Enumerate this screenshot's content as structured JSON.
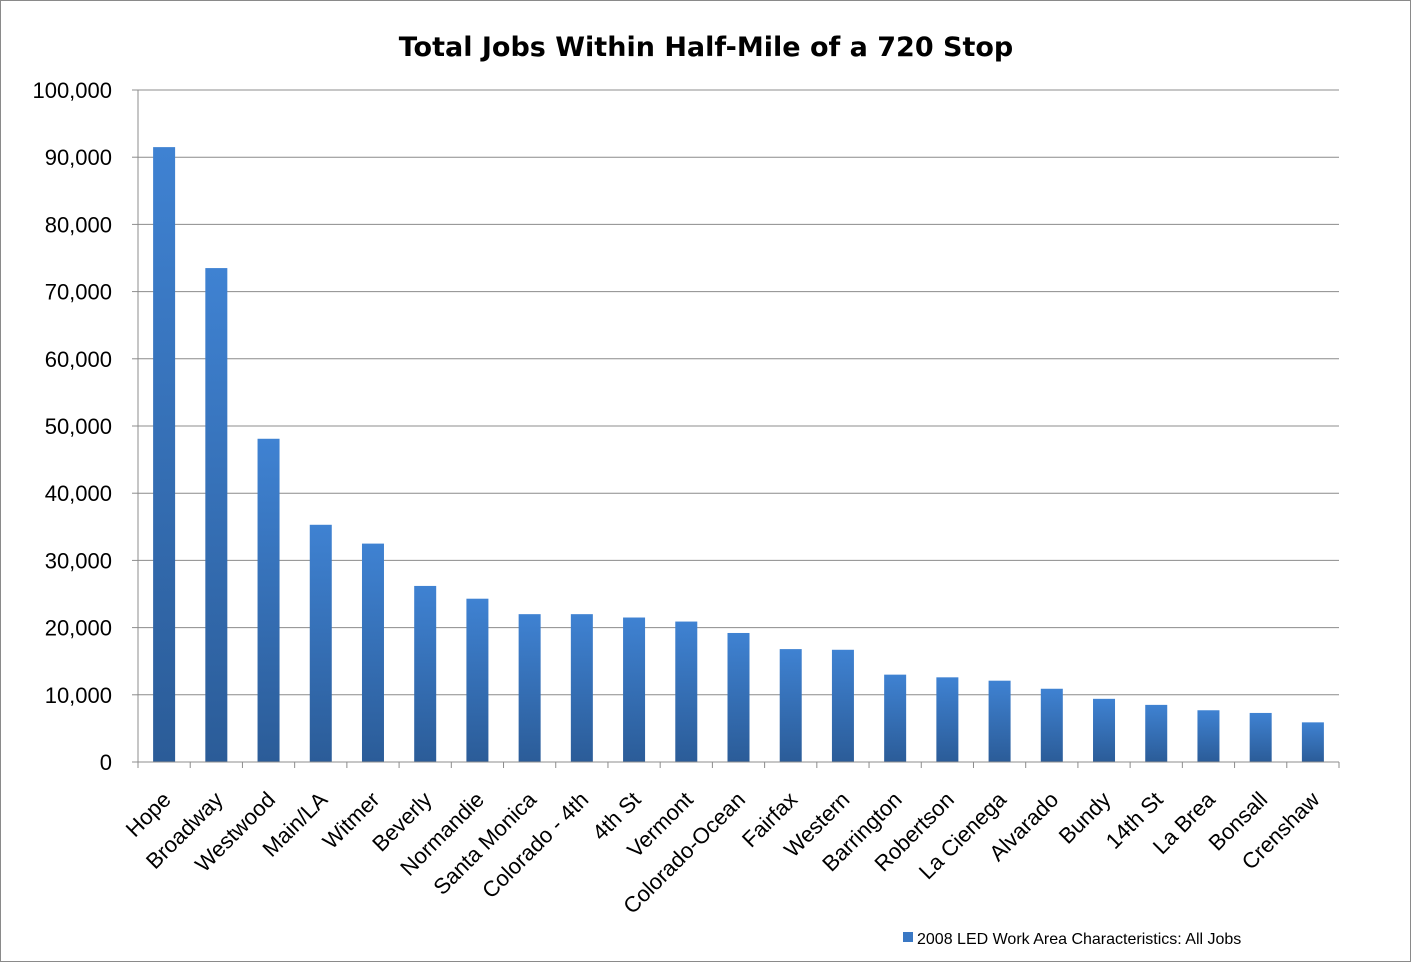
{
  "chart_data": {
    "type": "bar",
    "title": "Total Jobs Within Half-Mile of a 720 Stop",
    "xlabel": "",
    "ylabel": "",
    "ylim": [
      0,
      100000
    ],
    "ytick_step": 10000,
    "ytick_labels": [
      "0",
      "10,000",
      "20,000",
      "30,000",
      "40,000",
      "50,000",
      "60,000",
      "70,000",
      "80,000",
      "90,000",
      "100,000"
    ],
    "grid": true,
    "legend_position": "bottom-right",
    "categories": [
      "Hope",
      "Broadway",
      "Westwood",
      "Main/LA",
      "Witmer",
      "Beverly",
      "Normandie",
      "Santa Monica",
      "Colorado - 4th",
      "4th St",
      "Vermont",
      "Colorado-Ocean",
      "Fairfax",
      "Western",
      "Barrington",
      "Robertson",
      "La Cienega",
      "Alvarado",
      "Bundy",
      "14th St",
      "La Brea",
      "Bonsall",
      "Crenshaw"
    ],
    "series": [
      {
        "name": "2008 LED Work Area Characteristics: All Jobs",
        "color": "#3a78c4",
        "values": [
          91500,
          73500,
          48100,
          35300,
          32500,
          26200,
          24300,
          22000,
          22000,
          21500,
          20900,
          19200,
          16800,
          16700,
          13000,
          12600,
          12100,
          10900,
          9400,
          8500,
          7700,
          7300,
          5900
        ]
      }
    ]
  }
}
